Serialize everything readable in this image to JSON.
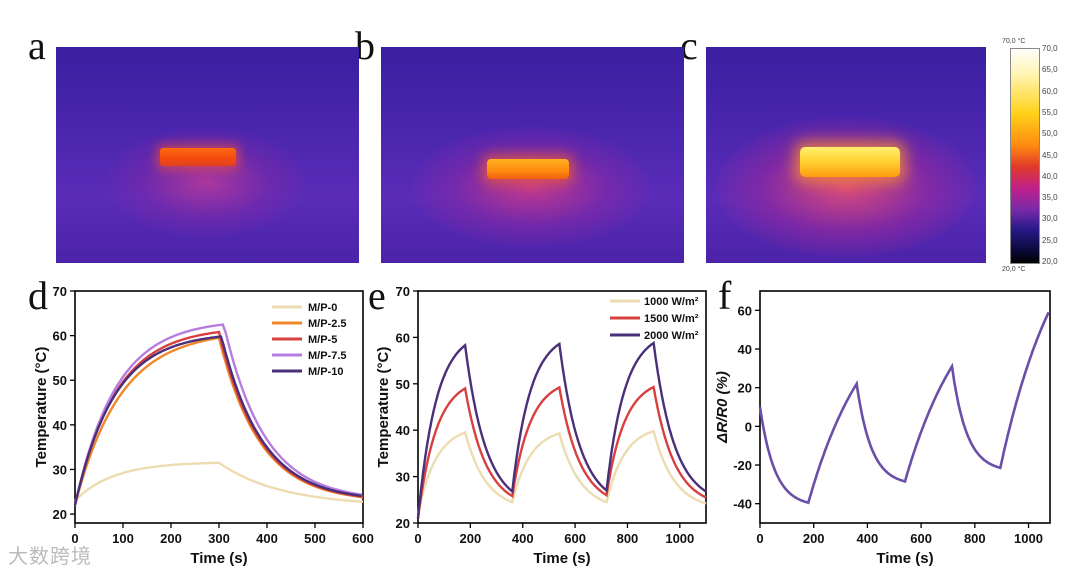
{
  "panels": {
    "a": "a",
    "b": "b",
    "c": "c",
    "d": "d",
    "e": "e",
    "f": "f"
  },
  "colorbar": {
    "max_label": "70,0 °C",
    "min_label": "20,0 °C",
    "ticks": [
      "70,0",
      "65,0",
      "60,0",
      "55,0",
      "50,0",
      "45,0",
      "40,0",
      "35,0",
      "30,0",
      "25,0",
      "20,0"
    ]
  },
  "watermark": "大数跨境",
  "chart_data": [
    {
      "id": "d",
      "type": "line",
      "xlabel": "Time (s)",
      "ylabel": "Temperature (°C)",
      "xlim": [
        0,
        600
      ],
      "ylim": [
        18,
        70
      ],
      "xticks": [
        0,
        100,
        200,
        300,
        400,
        500,
        600
      ],
      "yticks": [
        20,
        30,
        40,
        50,
        60,
        70
      ],
      "legend": "top-right",
      "series": [
        {
          "name": "M/P-0",
          "color": "#ecdcb0",
          "start": 23,
          "peak": 31.5,
          "end": 22.3,
          "ton": 300,
          "tau_up": 80,
          "tau_down": 130
        },
        {
          "name": "M/P-2.5",
          "color": "#f0882a",
          "start": 22,
          "peak": 59.5,
          "end": 23.2,
          "ton": 300,
          "tau_up": 95,
          "tau_down": 85
        },
        {
          "name": "M/P-5",
          "color": "#d84040",
          "start": 22,
          "peak": 60.8,
          "end": 23.3,
          "ton": 300,
          "tau_up": 85,
          "tau_down": 85
        },
        {
          "name": "M/P-7.5",
          "color": "#b57de0",
          "start": 22,
          "peak": 62.5,
          "end": 23.5,
          "ton": 310,
          "tau_up": 85,
          "tau_down": 85
        },
        {
          "name": "M/P-10",
          "color": "#4a2f7a",
          "start": 22,
          "peak": 59.8,
          "end": 23.4,
          "ton": 305,
          "tau_up": 82,
          "tau_down": 85
        }
      ]
    },
    {
      "id": "e",
      "type": "line",
      "xlabel": "Time (s)",
      "ylabel": "Temperature (°C)",
      "xlim": [
        0,
        1100
      ],
      "ylim": [
        20,
        70
      ],
      "xticks": [
        0,
        200,
        400,
        600,
        800,
        1000
      ],
      "yticks": [
        20,
        30,
        40,
        50,
        60,
        70
      ],
      "legend": "top-right",
      "cycle_s": 360,
      "on_s": 180,
      "series": [
        {
          "name": "1000 W/m²",
          "color": "#ecdcb0",
          "base": 22,
          "peaks": [
            39.5,
            39.3,
            39.8
          ],
          "troughs": [
            24.5,
            24.5,
            24.5
          ],
          "end": 24.2
        },
        {
          "name": "1500 W/m²",
          "color": "#d84040",
          "base": 21,
          "peaks": [
            49.0,
            49.2,
            49.3
          ],
          "troughs": [
            25.8,
            26.0,
            26.0
          ],
          "end": 25.5
        },
        {
          "name": "2000 W/m²",
          "color": "#4a2f7a",
          "base": 21,
          "peaks": [
            58.3,
            58.6,
            58.8
          ],
          "troughs": [
            26.8,
            27.0,
            27.2
          ],
          "end": 26.8
        }
      ]
    },
    {
      "id": "f",
      "type": "line",
      "xlabel": "Time (s)",
      "ylabel": "ΔR/R0 (%)",
      "xlim": [
        0,
        1080
      ],
      "ylim": [
        -50,
        70
      ],
      "xticks": [
        0,
        200,
        400,
        600,
        800,
        1000
      ],
      "yticks": [
        -40,
        -20,
        0,
        20,
        40,
        60
      ],
      "series": [
        {
          "name": "ΔR/R0",
          "color": "#6a4fa8",
          "points": [
            [
              0,
              10
            ],
            [
              180,
              -39.5
            ],
            [
              180,
              -39.5
            ],
            [
              360,
              22
            ],
            [
              360,
              22
            ],
            [
              540,
              -28.5
            ],
            [
              540,
              -28.5
            ],
            [
              715,
              31
            ],
            [
              715,
              31
            ],
            [
              895,
              -21.5
            ],
            [
              895,
              -21.5
            ],
            [
              1075,
              59
            ]
          ]
        }
      ]
    }
  ]
}
